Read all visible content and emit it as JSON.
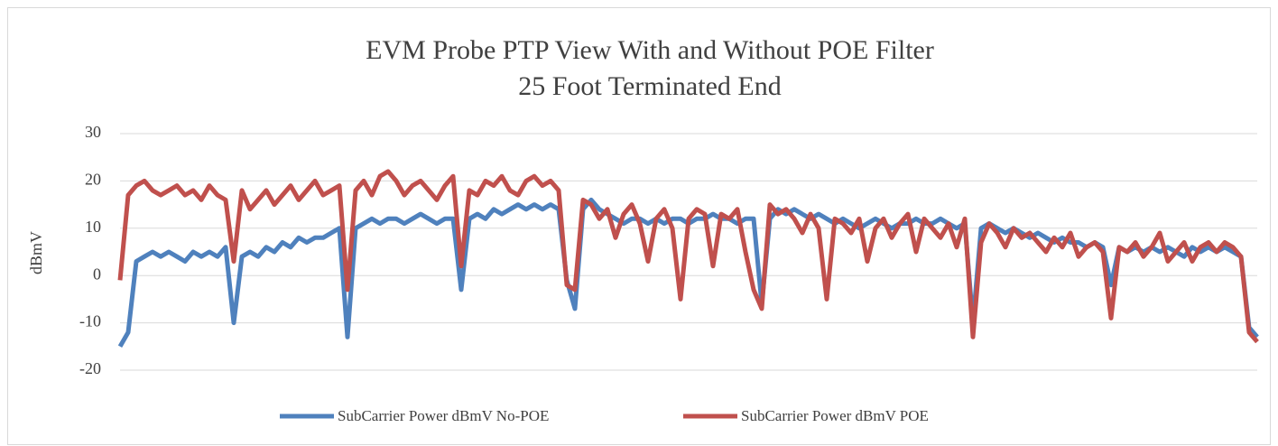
{
  "chart_data": {
    "type": "line",
    "title": "EVM Probe PTP View With and Without POE Filter",
    "subtitle": "25 Foot Terminated End",
    "y_label": "dBmV",
    "categories": [
      null,
      null,
      null,
      null,
      null,
      null,
      null,
      null,
      null,
      null,
      null,
      null,
      null,
      null,
      null,
      null,
      null,
      null,
      null,
      null,
      null,
      null,
      null,
      null,
      null,
      null,
      null,
      null,
      null,
      null,
      null,
      null,
      null,
      null,
      null,
      null,
      null,
      null,
      null,
      null,
      null,
      null,
      null,
      null,
      null,
      null,
      null,
      null,
      null,
      null,
      null,
      null,
      null,
      null,
      null,
      null,
      null,
      null,
      null,
      null,
      null,
      null,
      null,
      null,
      null,
      null,
      null,
      null,
      null,
      null,
      null,
      null,
      null,
      null,
      null,
      null,
      null,
      null,
      null,
      null,
      null,
      null,
      null,
      null,
      null,
      null,
      null,
      null,
      null,
      null,
      null,
      null,
      null,
      null,
      null,
      null,
      null,
      null,
      null,
      null,
      null,
      null,
      null,
      null,
      null,
      null,
      null,
      null,
      null,
      null,
      null,
      null,
      null,
      null,
      null,
      null,
      null,
      null,
      null,
      null,
      null,
      null,
      null,
      null,
      null,
      null,
      null,
      null,
      null,
      null,
      null,
      null,
      null,
      null,
      null,
      null,
      null,
      null,
      null,
      null,
      null
    ],
    "series": [
      {
        "name": "SubCarrier Power dBmV No-POE",
        "color": "#4f81bd",
        "values": [
          -15,
          -12,
          3,
          4,
          5,
          4,
          5,
          4,
          3,
          5,
          4,
          5,
          4,
          6,
          -10,
          4,
          5,
          4,
          6,
          5,
          7,
          6,
          8,
          7,
          8,
          8,
          9,
          10,
          -13,
          10,
          11,
          12,
          11,
          12,
          12,
          11,
          12,
          13,
          12,
          11,
          12,
          12,
          -3,
          12,
          13,
          12,
          14,
          13,
          14,
          15,
          14,
          15,
          14,
          15,
          14,
          -1,
          -7,
          14,
          16,
          14,
          13,
          12,
          11,
          12,
          12,
          11,
          12,
          11,
          12,
          12,
          11,
          12,
          12,
          13,
          12,
          12,
          11,
          12,
          12,
          -6,
          12,
          14,
          13,
          14,
          13,
          12,
          13,
          12,
          11,
          12,
          11,
          10,
          11,
          12,
          11,
          10,
          11,
          11,
          12,
          11,
          11,
          12,
          11,
          10,
          11,
          -10,
          10,
          11,
          10,
          9,
          10,
          9,
          8,
          9,
          8,
          7,
          8,
          7,
          7,
          6,
          7,
          6,
          -2,
          6,
          5,
          6,
          5,
          6,
          5,
          6,
          5,
          4,
          6,
          5,
          6,
          5,
          6,
          5,
          4,
          -11,
          -13
        ]
      },
      {
        "name": "SubCarrier Power dBmV  POE",
        "color": "#c0504d",
        "values": [
          -1,
          17,
          19,
          20,
          18,
          17,
          18,
          19,
          17,
          18,
          16,
          19,
          17,
          16,
          3,
          18,
          14,
          16,
          18,
          15,
          17,
          19,
          16,
          18,
          20,
          17,
          18,
          19,
          -3,
          18,
          20,
          17,
          21,
          22,
          20,
          17,
          19,
          20,
          18,
          16,
          19,
          21,
          2,
          18,
          17,
          20,
          19,
          21,
          18,
          17,
          20,
          21,
          19,
          20,
          18,
          -2,
          -3,
          16,
          15,
          12,
          14,
          8,
          13,
          15,
          11,
          3,
          12,
          14,
          10,
          -5,
          12,
          14,
          13,
          2,
          13,
          12,
          14,
          5,
          -3,
          -7,
          15,
          13,
          14,
          12,
          9,
          13,
          10,
          -5,
          12,
          11,
          9,
          12,
          3,
          10,
          12,
          8,
          11,
          13,
          5,
          12,
          10,
          8,
          11,
          6,
          12,
          -13,
          7,
          11,
          9,
          6,
          10,
          8,
          9,
          7,
          5,
          8,
          6,
          9,
          4,
          6,
          7,
          5,
          -9,
          6,
          5,
          7,
          4,
          6,
          9,
          3,
          5,
          7,
          3,
          6,
          7,
          5,
          7,
          6,
          4,
          -12,
          -14
        ]
      }
    ],
    "ylim": [
      -20,
      30
    ],
    "yticks": [
      -20,
      -10,
      0,
      10,
      20,
      30
    ],
    "grid": true,
    "legend": "bottom"
  }
}
